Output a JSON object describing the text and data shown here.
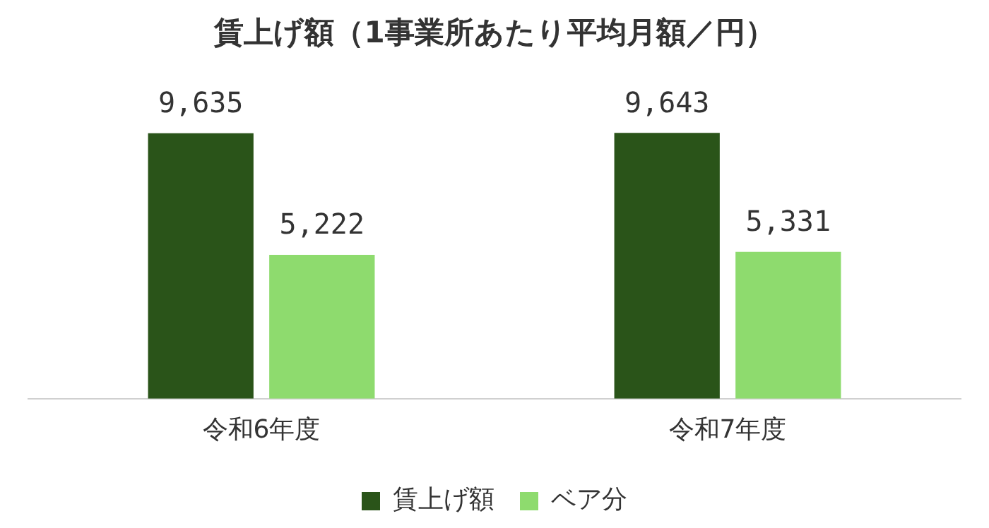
{
  "chart_data": {
    "type": "bar",
    "title": "賃上げ額（1事業所あたり平均月額／円）",
    "categories": [
      "令和6年度",
      "令和7年度"
    ],
    "series": [
      {
        "name": "賃上げ額",
        "color": "#2a5419",
        "values": [
          9635,
          9643
        ],
        "value_labels": [
          "9,635",
          "9,643"
        ]
      },
      {
        "name": "ベア分",
        "color": "#8edb6e",
        "values": [
          5222,
          5331
        ],
        "value_labels": [
          "5,222",
          "5,331"
        ]
      }
    ],
    "legend": "bottom",
    "grid": false,
    "tick_labels": "x"
  }
}
